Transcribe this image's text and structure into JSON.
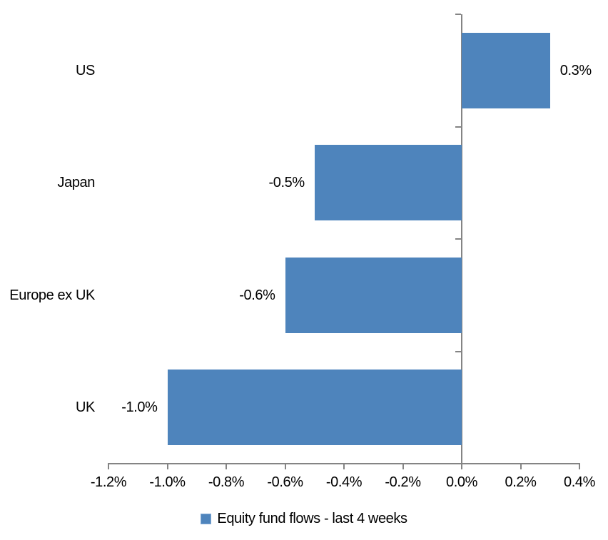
{
  "chart_data": {
    "type": "bar",
    "orientation": "horizontal",
    "title": "",
    "xlabel": "",
    "ylabel": "",
    "categories": [
      "US",
      "Japan",
      "Europe ex UK",
      "UK"
    ],
    "values": [
      0.3,
      -0.5,
      -0.6,
      -1.0
    ],
    "value_labels": [
      "0.3%",
      "-0.5%",
      "-0.6%",
      "-1.0%"
    ],
    "series_name": "Equity fund flows - last 4 weeks",
    "xlim": [
      -1.2,
      0.4
    ],
    "x_tick_values": [
      -1.2,
      -1.0,
      -0.8,
      -0.6,
      -0.4,
      -0.2,
      0.0,
      0.2,
      0.4
    ],
    "x_tick_labels": [
      "-1.2%",
      "-1.0%",
      "-0.8%",
      "-0.6%",
      "-0.4%",
      "-0.2%",
      "0.0%",
      "0.2%",
      "0.4%"
    ],
    "grid": false,
    "legend_position": "bottom",
    "colors": {
      "bar": "#4E84BC",
      "legend_marker_border": "#7FA8D4",
      "axis": "#848484",
      "text": "#000000",
      "background": "#FFFFFF"
    }
  }
}
